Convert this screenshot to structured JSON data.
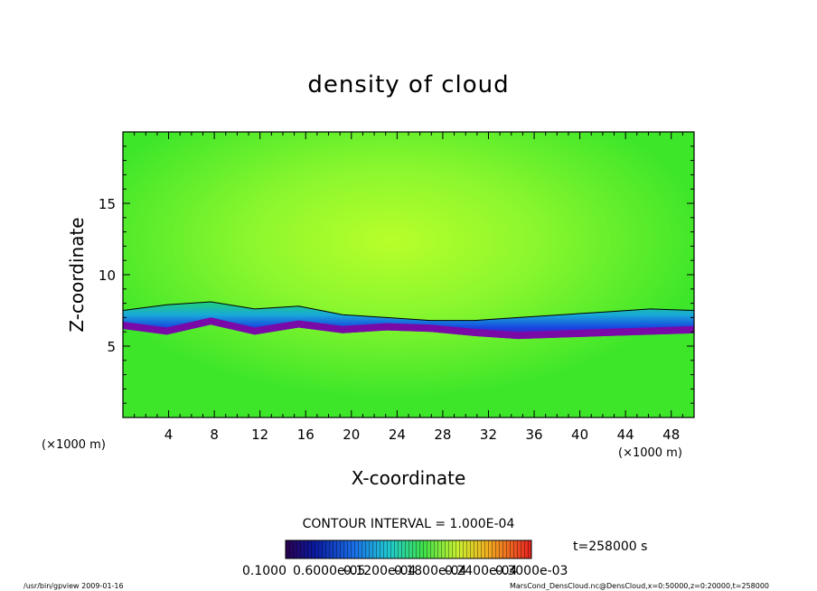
{
  "chart_data": {
    "type": "heatmap",
    "title": "density of cloud",
    "xlabel": "X-coordinate",
    "ylabel": "Z-coordinate",
    "x_unit": "(×1000 m)",
    "y_unit": "(×1000 m)",
    "xlim": [
      0,
      50
    ],
    "ylim": [
      0,
      20
    ],
    "x_ticks": [
      "4",
      "8",
      "12",
      "16",
      "20",
      "24",
      "28",
      "32",
      "36",
      "40",
      "44",
      "48"
    ],
    "y_ticks": [
      "5",
      "10",
      "15"
    ],
    "contour_interval_label": "CONTOUR INTERVAL = 1.000E-04",
    "time_label": "t=258000 s",
    "colorbar_labels": [
      "0.1000",
      "0.6000e-05",
      "0.1200e-04",
      "0.1800e-04",
      "0.2400e-04",
      "0.3000e-03"
    ],
    "cloud_base_km": [
      6.2,
      5.8,
      6.5,
      5.8,
      6.3,
      5.9,
      6.1,
      6.0,
      5.7,
      5.5,
      5.6,
      5.7,
      5.8,
      5.9
    ],
    "contour_top_km": [
      7.5,
      7.9,
      8.1,
      7.6,
      7.8,
      7.2,
      7.0,
      6.8,
      6.8,
      7.0,
      7.2,
      7.4,
      7.6,
      7.5
    ],
    "colors": {
      "field_green": "#40ea2a",
      "field_yellow": "#b8ff2a",
      "low_blue": "#1040e0",
      "low_purple": "#7a0aa8"
    }
  },
  "footer": {
    "left": "/usr/bin/gpview   2009-01-16",
    "right": "MarsCond_DensCloud.nc@DensCloud,x=0:50000,z=0:20000,t=258000"
  }
}
